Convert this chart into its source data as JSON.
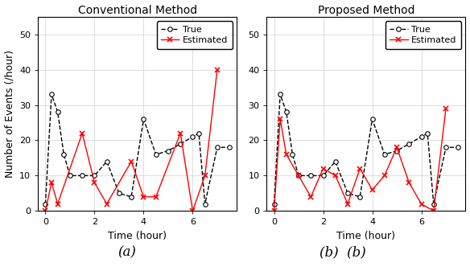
{
  "left_title": "Conventional Method",
  "right_title": "Proposed Method",
  "xlabel": "Time (hour)",
  "ylabel": "Number of Events (/hour)",
  "caption_left": "(a)",
  "caption_right": "(b)  (b)",
  "true_x": [
    0,
    0.25,
    0.5,
    0.75,
    1.0,
    1.5,
    2.0,
    2.5,
    3.0,
    3.5,
    4.0,
    4.5,
    5.0,
    5.5,
    6.0,
    6.25,
    6.5,
    7.0,
    7.5
  ],
  "true_y": [
    2,
    33,
    28,
    16,
    10,
    10,
    10,
    14,
    5,
    4,
    26,
    16,
    17,
    19,
    21,
    22,
    2,
    18,
    18
  ],
  "conv_est_x": [
    0,
    0.25,
    0.5,
    1.5,
    2.0,
    2.5,
    3.5,
    4.0,
    4.5,
    5.5,
    6.0,
    6.5,
    7.0
  ],
  "conv_est_y": [
    0,
    8,
    2,
    22,
    8,
    2,
    14,
    4,
    4,
    22,
    0,
    10,
    40
  ],
  "prop_est_x": [
    0,
    0.25,
    0.5,
    1.0,
    1.5,
    2.0,
    2.5,
    3.0,
    3.5,
    4.0,
    4.5,
    5.0,
    5.5,
    6.0,
    6.5,
    7.0
  ],
  "prop_est_y": [
    0,
    26,
    16,
    10,
    4,
    12,
    10,
    2,
    12,
    6,
    10,
    18,
    8,
    2,
    0,
    29
  ],
  "ylim": [
    0,
    55
  ],
  "xlim": [
    -0.3,
    7.8
  ],
  "yticks": [
    0,
    10,
    20,
    30,
    40,
    50
  ],
  "xticks": [
    0,
    2,
    4,
    6
  ],
  "true_color": "#000000",
  "est_color": "#ff0000",
  "true_marker": "o",
  "est_marker": "x",
  "linestyle_true": "--",
  "linestyle_est": "-",
  "legend_true": "True",
  "legend_est": "Estimated",
  "title_fontsize": 10,
  "label_fontsize": 9,
  "tick_fontsize": 8,
  "legend_fontsize": 8,
  "caption_fontsize": 12
}
